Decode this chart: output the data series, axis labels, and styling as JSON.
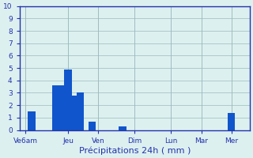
{
  "bar_positions": [
    1,
    5,
    6,
    7,
    8,
    9,
    11,
    16,
    34
  ],
  "bar_heights": [
    1.5,
    3.6,
    3.6,
    4.9,
    2.8,
    3.0,
    0.7,
    0.3,
    1.4
  ],
  "bar_color": "#1155cc",
  "bar_width": 1.2,
  "background_color": "#ddf0f0",
  "grid_color": "#99bbbb",
  "axis_color": "#2233aa",
  "tick_label_color": "#2233aa",
  "xlabel": "Précipitations 24h ( mm )",
  "xlabel_color": "#2233aa",
  "xlabel_fontsize": 8,
  "ylim": [
    0,
    10
  ],
  "yticks": [
    0,
    1,
    2,
    3,
    4,
    5,
    6,
    7,
    8,
    9,
    10
  ],
  "xtick_positions": [
    0,
    7,
    12,
    18,
    24,
    29,
    34
  ],
  "xtick_labels": [
    "Ve6am",
    "Jeu",
    "Ven",
    "Dim",
    "Lun",
    "Mar",
    "Mer"
  ],
  "tick_fontsize": 6.5,
  "xlim": [
    -1,
    37
  ]
}
